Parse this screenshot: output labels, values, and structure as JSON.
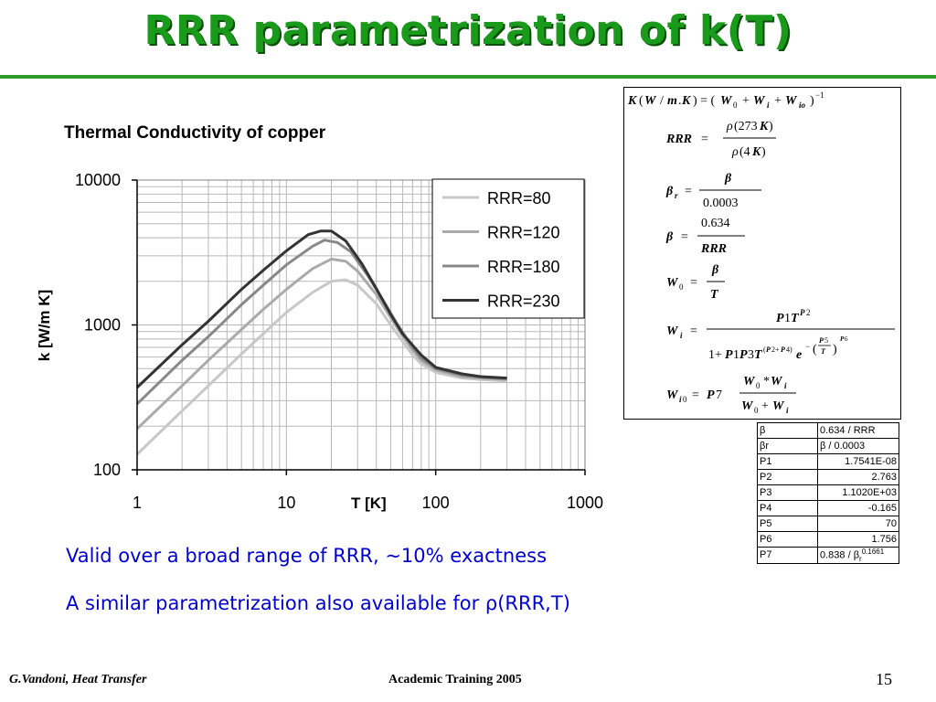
{
  "slide": {
    "title": "RRR parametrization of k(T)",
    "footer_left": "G.Vandoni, Heat Transfer",
    "footer_center": "Academic Training 2005",
    "page_number": "15",
    "accent_color": "#1a9a1a"
  },
  "notes": {
    "line1": "Valid over a broad range of RRR, ~10% exactness",
    "line2_prefix": "A similar parametrization also available for ",
    "line2_symbol": "ρ",
    "line2_suffix": "(RRR,T)"
  },
  "chart_data": {
    "type": "line",
    "title": "Thermal Conductivity of copper",
    "xlabel": "T [K]",
    "ylabel": "k [W/m K]",
    "x_scale": "log",
    "y_scale": "log",
    "xlim": [
      1,
      1000
    ],
    "ylim": [
      100,
      10000
    ],
    "x_ticks": [
      "1",
      "10",
      "100",
      "1000"
    ],
    "y_ticks": [
      "100",
      "1000",
      "10000"
    ],
    "grid": true,
    "legend_position": "top-right",
    "series": [
      {
        "name": "RRR=80",
        "color": "#c8c8c8",
        "x": [
          1,
          2,
          3,
          5,
          7,
          10,
          15,
          20,
          25,
          30,
          40,
          50,
          60,
          70,
          80,
          100,
          150,
          200,
          300
        ],
        "y": [
          128,
          255,
          380,
          630,
          870,
          1220,
          1680,
          2000,
          2050,
          1880,
          1400,
          1000,
          770,
          620,
          540,
          470,
          430,
          420,
          410
        ]
      },
      {
        "name": "RRR=120",
        "color": "#aaaaaa",
        "x": [
          1,
          2,
          3,
          5,
          7,
          10,
          15,
          20,
          25,
          30,
          40,
          50,
          60,
          70,
          80,
          100,
          150,
          200,
          300
        ],
        "y": [
          192,
          380,
          570,
          930,
          1280,
          1760,
          2450,
          2850,
          2750,
          2350,
          1620,
          1120,
          840,
          670,
          570,
          490,
          440,
          430,
          420
        ]
      },
      {
        "name": "RRR=180",
        "color": "#888888",
        "x": [
          1,
          2,
          3,
          5,
          7,
          10,
          15,
          18,
          22,
          27,
          35,
          45,
          55,
          70,
          80,
          100,
          150,
          200,
          300
        ],
        "y": [
          285,
          570,
          830,
          1380,
          1880,
          2600,
          3500,
          3850,
          3700,
          3200,
          2200,
          1450,
          1020,
          700,
          590,
          500,
          450,
          435,
          425
        ]
      },
      {
        "name": "RRR=230",
        "color": "#333333",
        "x": [
          1,
          2,
          3,
          5,
          7,
          10,
          14,
          17,
          20,
          25,
          32,
          40,
          50,
          60,
          80,
          100,
          150,
          200,
          300
        ],
        "y": [
          370,
          730,
          1060,
          1760,
          2380,
          3250,
          4200,
          4450,
          4450,
          3800,
          2650,
          1780,
          1180,
          870,
          620,
          510,
          460,
          440,
          430
        ]
      }
    ]
  },
  "parameters": {
    "rows": [
      {
        "key": "β",
        "value": "0.634 / RRR",
        "align": "left"
      },
      {
        "key": "βr",
        "value": "β / 0.0003",
        "align": "left"
      },
      {
        "key": "P1",
        "value": "1.7541E-08",
        "align": "right"
      },
      {
        "key": "P2",
        "value": "2.763",
        "align": "right"
      },
      {
        "key": "P3",
        "value": "1.1020E+03",
        "align": "right"
      },
      {
        "key": "P4",
        "value": "-0.165",
        "align": "right"
      },
      {
        "key": "P5",
        "value": "70",
        "align": "right"
      },
      {
        "key": "P6",
        "value": "1.756",
        "align": "right"
      },
      {
        "key": "P7",
        "value": "0.838 / βr^0.1661",
        "align": "left"
      }
    ]
  },
  "formulas": {
    "k": "K(W/m.K) = (W0 + Wi + Wio)^-1",
    "rrr": "RRR = ρ(273K) / ρ(4K)",
    "beta_r": "βr = β / 0.0003",
    "beta": "β = 0.634 / RRR",
    "w0": "W0 = β / T",
    "wi": "Wi = P1 T^P2 / (1 + P1 P3 T^(P2+P4) e^(-(P5/T)^P6))",
    "wi0": "Wi0 = P7 (W0*Wi)/(W0+Wi)"
  }
}
